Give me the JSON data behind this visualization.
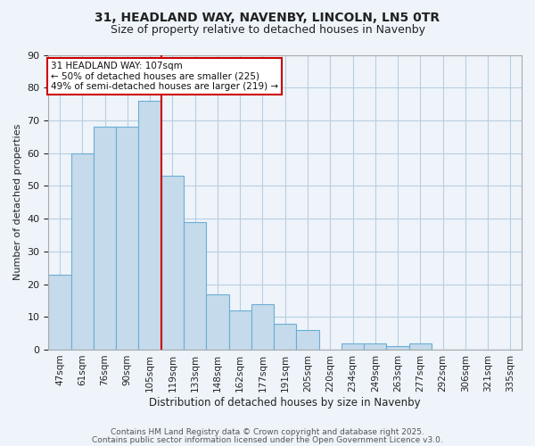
{
  "title_line1": "31, HEADLAND WAY, NAVENBY, LINCOLN, LN5 0TR",
  "title_line2": "Size of property relative to detached houses in Navenby",
  "xlabel": "Distribution of detached houses by size in Navenby",
  "ylabel": "Number of detached properties",
  "bar_labels": [
    "47sqm",
    "61sqm",
    "76sqm",
    "90sqm",
    "105sqm",
    "119sqm",
    "133sqm",
    "148sqm",
    "162sqm",
    "177sqm",
    "191sqm",
    "205sqm",
    "220sqm",
    "234sqm",
    "249sqm",
    "263sqm",
    "277sqm",
    "292sqm",
    "306sqm",
    "321sqm",
    "335sqm"
  ],
  "bar_values": [
    23,
    60,
    68,
    68,
    76,
    53,
    39,
    17,
    12,
    14,
    8,
    6,
    0,
    2,
    2,
    1,
    2,
    0,
    0,
    0,
    0
  ],
  "property_line_x": 4.5,
  "annotation_text": "31 HEADLAND WAY: 107sqm\n← 50% of detached houses are smaller (225)\n49% of semi-detached houses are larger (219) →",
  "annotation_box_color": "#ffffff",
  "annotation_border_color": "#cc0000",
  "bar_face_color": "#c5daea",
  "bar_edge_color": "#6aaed6",
  "property_line_color": "#cc0000",
  "background_color": "#eef4fa",
  "grid_color": "#b8cfe0",
  "ylim": [
    0,
    90
  ],
  "yticks": [
    0,
    10,
    20,
    30,
    40,
    50,
    60,
    70,
    80,
    90
  ],
  "footnote1": "Contains HM Land Registry data © Crown copyright and database right 2025.",
  "footnote2": "Contains public sector information licensed under the Open Government Licence v3.0."
}
